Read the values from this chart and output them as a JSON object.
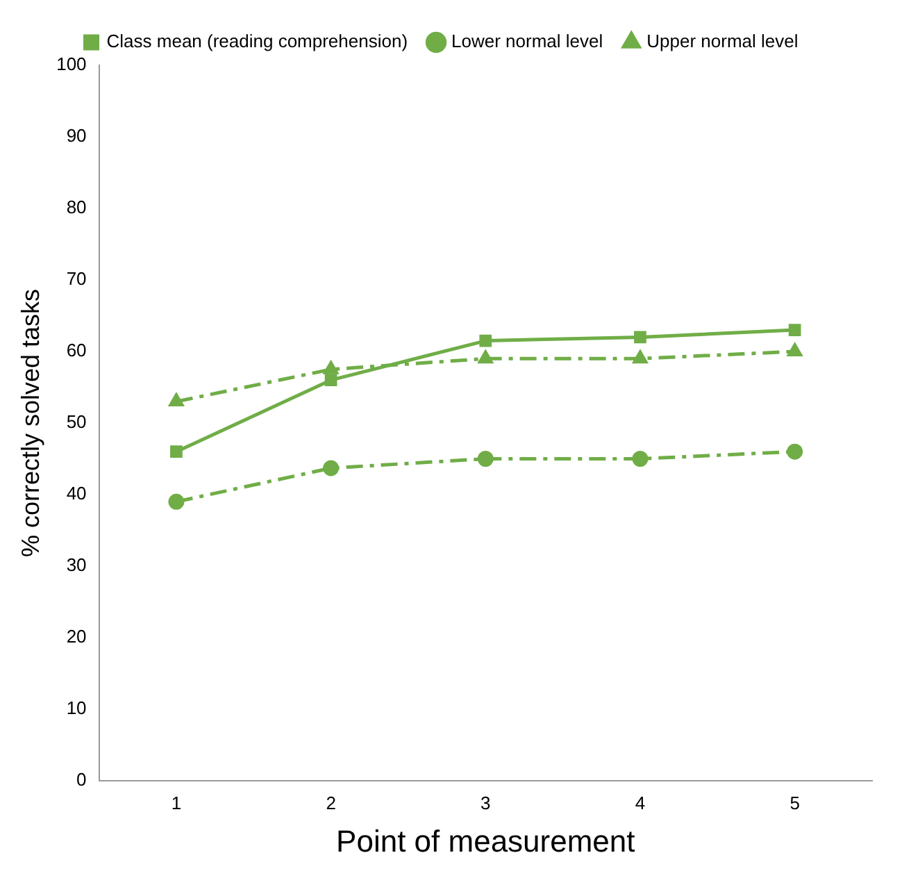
{
  "chart_data": {
    "type": "line",
    "xlabel": "Point of measurement",
    "ylabel": "% correctly solved tasks",
    "categories": [
      "1",
      "2",
      "3",
      "4",
      "5"
    ],
    "ylim": [
      0,
      100
    ],
    "yticks": [
      0,
      10,
      20,
      30,
      40,
      50,
      60,
      70,
      80,
      90,
      100
    ],
    "grid": false,
    "legend": "top",
    "series": [
      {
        "name": "Class mean (reading comprehension)",
        "color": "#70ad47",
        "marker": "square",
        "line_style": "solid",
        "values": [
          46,
          56,
          61.5,
          62,
          63
        ]
      },
      {
        "name": "Lower normal level",
        "color": "#70ad47",
        "marker": "circle",
        "line_style": "dashed",
        "values": [
          39,
          43.7,
          45,
          45,
          46
        ]
      },
      {
        "name": "Upper normal level",
        "color": "#70ad47",
        "marker": "triangle",
        "line_style": "dashed",
        "values": [
          53,
          57.5,
          59,
          59,
          60
        ]
      }
    ]
  }
}
